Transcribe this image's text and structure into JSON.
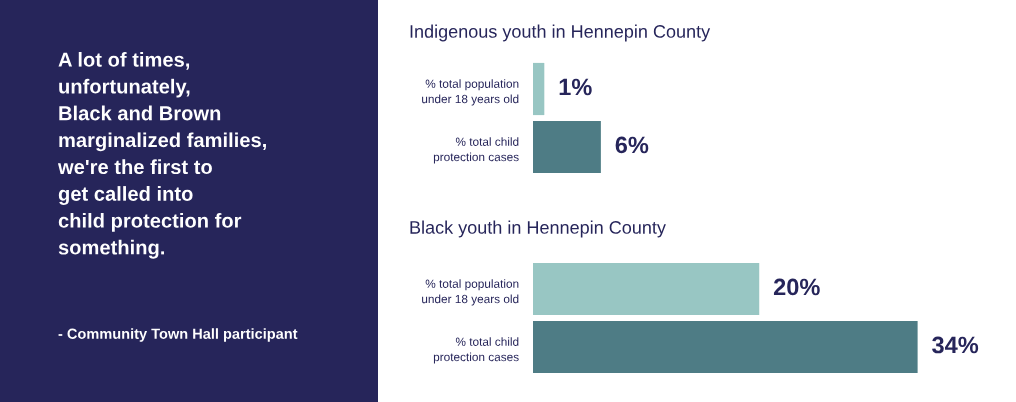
{
  "chart_data": [
    {
      "type": "other",
      "annotations": [
        "A lot of times,\nunfortunately,\nBlack and Brown\nmarginalized families,\nwe're the first to\nget called into\nchild protection for\nsomething.",
        "- Community Town Hall participant"
      ]
    },
    {
      "type": "bar",
      "orientation": "horizontal",
      "title": "Indigenous youth in Hennepin County",
      "categories": [
        "% total population\nunder 18 years old",
        "% total child\nprotection cases"
      ],
      "values": [
        1,
        6
      ],
      "colors": [
        "#98c6c3",
        "#4e7c85"
      ],
      "value_labels": [
        "1%",
        "6%"
      ],
      "tick_labels": "y"
    },
    {
      "type": "bar",
      "orientation": "horizontal",
      "title": "Black youth in Hennepin County",
      "categories": [
        "% total population\nunder 18 years old",
        "% total child\nprotection cases"
      ],
      "values": [
        20,
        34
      ],
      "colors": [
        "#98c6c3",
        "#4e7c85"
      ],
      "value_labels": [
        "20%",
        "34%"
      ],
      "tick_labels": "y"
    }
  ]
}
